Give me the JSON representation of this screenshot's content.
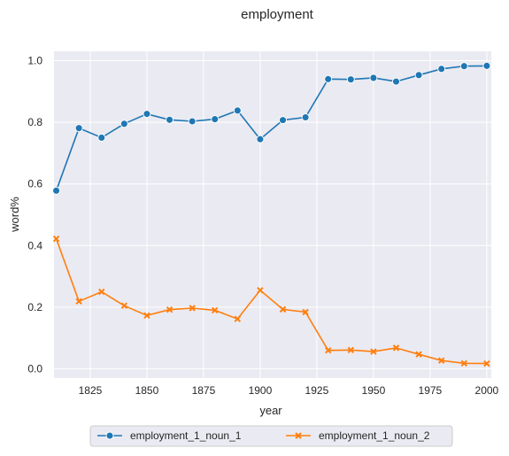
{
  "chart_data": {
    "type": "line",
    "title": "employment",
    "xlabel": "year",
    "ylabel": "word%",
    "xlim": [
      1809,
      2002
    ],
    "ylim": [
      -0.03,
      1.03
    ],
    "xticks": [
      1825,
      1850,
      1875,
      1900,
      1925,
      1950,
      1975,
      2000
    ],
    "yticks": [
      0.0,
      0.2,
      0.4,
      0.6,
      0.8,
      1.0
    ],
    "grid": true,
    "legend_position": "bottom-center",
    "x": [
      1810,
      1820,
      1830,
      1840,
      1850,
      1860,
      1870,
      1880,
      1890,
      1900,
      1910,
      1920,
      1930,
      1940,
      1950,
      1960,
      1970,
      1980,
      1990,
      2000
    ],
    "series": [
      {
        "name": "employment_1_noun_1",
        "color": "#1f77b4",
        "marker": "circle",
        "values": [
          0.578,
          0.781,
          0.75,
          0.795,
          0.827,
          0.808,
          0.803,
          0.81,
          0.838,
          0.745,
          0.807,
          0.816,
          0.94,
          0.939,
          0.944,
          0.932,
          0.953,
          0.973,
          0.982,
          0.983
        ]
      },
      {
        "name": "employment_1_noun_2",
        "color": "#ff7f0e",
        "marker": "x",
        "values": [
          0.422,
          0.219,
          0.25,
          0.205,
          0.173,
          0.192,
          0.197,
          0.19,
          0.162,
          0.255,
          0.193,
          0.184,
          0.06,
          0.061,
          0.056,
          0.068,
          0.047,
          0.027,
          0.018,
          0.017
        ]
      }
    ]
  }
}
